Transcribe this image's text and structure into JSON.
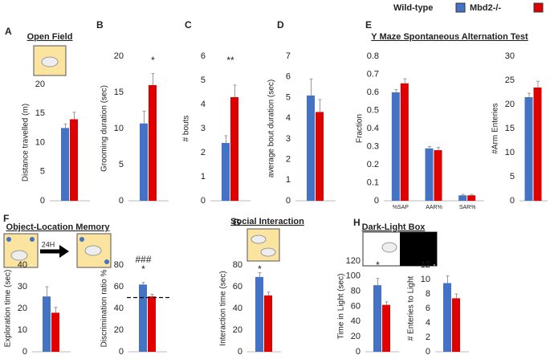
{
  "legend": [
    {
      "name": "Wild-type",
      "color": "#4472c4"
    },
    {
      "name": "Mbd2-/-",
      "color": "#e00000"
    }
  ],
  "panel_letters": [
    "A",
    "B",
    "C",
    "D",
    "E",
    "F",
    "G",
    "H"
  ],
  "arrow_label": "24H",
  "chart_data": [
    {
      "type": "bar",
      "title": "Open Field",
      "ylabel": "Distance travelled (m)",
      "categories": [
        null
      ],
      "ylim": [
        0,
        20
      ],
      "yticks": [
        0,
        5,
        10,
        15,
        20
      ],
      "series": [
        {
          "values": [
            12.5
          ],
          "errors": [
            0.7
          ]
        },
        {
          "values": [
            14
          ],
          "errors": [
            1.2
          ]
        }
      ]
    },
    {
      "type": "bar",
      "ylabel": "Grooming duration (sec)",
      "categories": [
        null
      ],
      "ylim": [
        0,
        20
      ],
      "yticks": [
        0,
        5,
        10,
        15,
        20
      ],
      "series": [
        {
          "values": [
            10.7
          ],
          "errors": [
            1.7
          ]
        },
        {
          "values": [
            16
          ],
          "errors": [
            1.6
          ]
        }
      ],
      "annotations": [
        "*"
      ]
    },
    {
      "type": "bar",
      "ylabel": "# bouts",
      "categories": [
        null
      ],
      "ylim": [
        0,
        6
      ],
      "yticks": [
        0,
        1,
        2,
        3,
        4,
        5,
        6
      ],
      "series": [
        {
          "values": [
            2.4
          ],
          "errors": [
            0.3
          ]
        },
        {
          "values": [
            4.3
          ],
          "errors": [
            0.5
          ]
        }
      ],
      "annotations": [
        "**"
      ]
    },
    {
      "type": "bar",
      "ylabel": "average bout duration (sec)",
      "categories": [
        null
      ],
      "ylim": [
        0,
        7
      ],
      "yticks": [
        0,
        1,
        2,
        3,
        4,
        5,
        6,
        7
      ],
      "series": [
        {
          "values": [
            5.1
          ],
          "errors": [
            0.8
          ]
        },
        {
          "values": [
            4.3
          ],
          "errors": [
            0.6
          ]
        }
      ]
    },
    {
      "type": "bar",
      "title": "Y Maze Spontaneous Alternation Test",
      "ylabel": "Fraction",
      "categories": [
        "%SAP",
        "AAR%",
        "SAR%"
      ],
      "ylim": [
        0,
        0.8
      ],
      "yticks": [
        0,
        0.1,
        0.2,
        0.3,
        0.4,
        0.5,
        0.6,
        0.7,
        0.8
      ],
      "series": [
        {
          "values": [
            0.6,
            0.29,
            0.03
          ],
          "errors": [
            0.015,
            0.01,
            0.005
          ]
        },
        {
          "values": [
            0.65,
            0.28,
            0.03
          ],
          "errors": [
            0.025,
            0.015,
            0.005
          ]
        }
      ]
    },
    {
      "type": "bar",
      "ylabel": "#Arm  Enteries",
      "categories": [
        null
      ],
      "ylim": [
        0,
        30
      ],
      "yticks": [
        0,
        5,
        10,
        15,
        20,
        25,
        30
      ],
      "series": [
        {
          "values": [
            21.5
          ],
          "errors": [
            0.8
          ]
        },
        {
          "values": [
            23.5
          ],
          "errors": [
            1.3
          ]
        }
      ]
    },
    {
      "type": "bar",
      "title": "Object-Location Memory",
      "ylabel": "Exploration time (sec)",
      "categories": [
        null
      ],
      "ylim": [
        0,
        40
      ],
      "yticks": [
        0,
        10,
        20,
        30,
        40
      ],
      "series": [
        {
          "values": [
            25.5
          ],
          "errors": [
            4.5
          ]
        },
        {
          "values": [
            18
          ],
          "errors": [
            2.5
          ]
        }
      ]
    },
    {
      "type": "bar",
      "ylabel": "Discrimination ratio %",
      "categories": [
        null
      ],
      "ylim": [
        0,
        80
      ],
      "yticks": [
        0,
        20,
        40,
        60,
        80
      ],
      "series": [
        {
          "values": [
            62
          ],
          "errors": [
            2
          ]
        },
        {
          "values": [
            51
          ],
          "errors": [
            2
          ]
        }
      ],
      "annotations": [
        "###",
        "*"
      ],
      "reference_line": 50
    },
    {
      "type": "bar",
      "title": "Social Interaction",
      "ylabel": "Interaction time (sec)",
      "categories": [
        null
      ],
      "ylim": [
        0,
        80
      ],
      "yticks": [
        0,
        20,
        40,
        60,
        80
      ],
      "series": [
        {
          "values": [
            69
          ],
          "errors": [
            4
          ]
        },
        {
          "values": [
            52
          ],
          "errors": [
            3
          ]
        }
      ],
      "annotations": [
        "*"
      ]
    },
    {
      "type": "bar",
      "title": "Dark-Light Box",
      "ylabel": "Time in Light (sec)",
      "categories": [
        null
      ],
      "ylim": [
        0,
        120
      ],
      "yticks": [
        0,
        20,
        40,
        60,
        80,
        100,
        120
      ],
      "series": [
        {
          "values": [
            88
          ],
          "errors": [
            9
          ]
        },
        {
          "values": [
            62
          ],
          "errors": [
            4
          ]
        }
      ],
      "annotations": [
        "*"
      ]
    },
    {
      "type": "bar",
      "ylabel": "# Enteries to Light",
      "categories": [
        null
      ],
      "ylim": [
        0,
        12
      ],
      "yticks": [
        0,
        2,
        4,
        6,
        8,
        10,
        12
      ],
      "series": [
        {
          "values": [
            9.5
          ],
          "errors": [
            1
          ]
        },
        {
          "values": [
            7.4
          ],
          "errors": [
            0.6
          ]
        }
      ]
    }
  ]
}
